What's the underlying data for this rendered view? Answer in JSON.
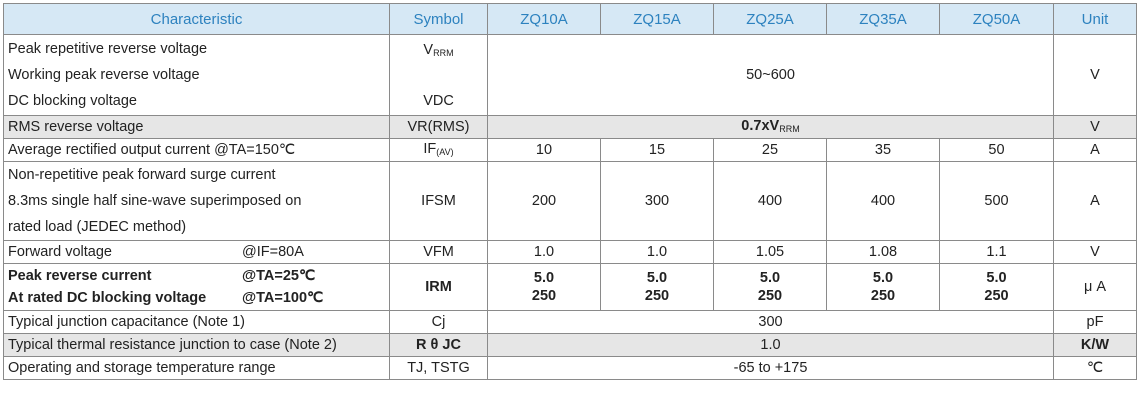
{
  "headers": {
    "characteristic": "Characteristic",
    "symbol": "Symbol",
    "models": [
      "ZQ10A",
      "ZQ15A",
      "ZQ25A",
      "ZQ35A",
      "ZQ50A"
    ],
    "unit": "Unit"
  },
  "rows": {
    "block_voltage": {
      "lines": [
        "Peak repetitive reverse voltage",
        "Working peak reverse voltage",
        "DC blocking voltage"
      ],
      "symbol_top_main": "V",
      "symbol_top_sub": "RRM",
      "symbol_bottom": "VDC",
      "value": "50~600",
      "unit": "V"
    },
    "rms": {
      "label": "RMS reverse voltage",
      "symbol": "VR(RMS)",
      "value_main": "0.7xV",
      "value_sub": "RRM",
      "unit": "V"
    },
    "avg_current": {
      "label": "Average rectified output current @TA=150℃",
      "symbol_main": "IF",
      "symbol_sub": "(AV)",
      "values": [
        "10",
        "15",
        "25",
        "35",
        "50"
      ],
      "unit": "A"
    },
    "surge": {
      "lines": [
        "Non-repetitive peak forward surge current",
        "8.3ms single half sine-wave superimposed on",
        "rated load (JEDEC method)"
      ],
      "symbol": "IFSM",
      "values": [
        "200",
        "300",
        "400",
        "400",
        "500"
      ],
      "unit": "A"
    },
    "forward_voltage": {
      "label": "Forward voltage",
      "condition": "@IF=80A",
      "symbol": "VFM",
      "values": [
        "1.0",
        "1.0",
        "1.05",
        "1.08",
        "1.1"
      ],
      "unit": "V"
    },
    "reverse_current": {
      "line1_label": "Peak reverse current",
      "line1_condition": "@TA=25℃",
      "line2_label": "At rated DC blocking voltage",
      "line2_condition": "@TA=100℃",
      "symbol": "IRM",
      "values_25": [
        "5.0",
        "5.0",
        "5.0",
        "5.0",
        "5.0"
      ],
      "values_100": [
        "250",
        "250",
        "250",
        "250",
        "250"
      ],
      "unit": "μ A"
    },
    "capacitance": {
      "label": "Typical junction capacitance (Note 1)",
      "symbol": "Cj",
      "value": "300",
      "unit": "pF"
    },
    "thermal": {
      "label": "Typical thermal resistance junction to case (Note 2)",
      "symbol": "R θ JC",
      "value": "1.0",
      "unit": "K/W"
    },
    "temperature": {
      "label": "Operating and storage temperature range",
      "symbol": "TJ, TSTG",
      "value": "-65 to +175",
      "unit": "℃"
    }
  }
}
